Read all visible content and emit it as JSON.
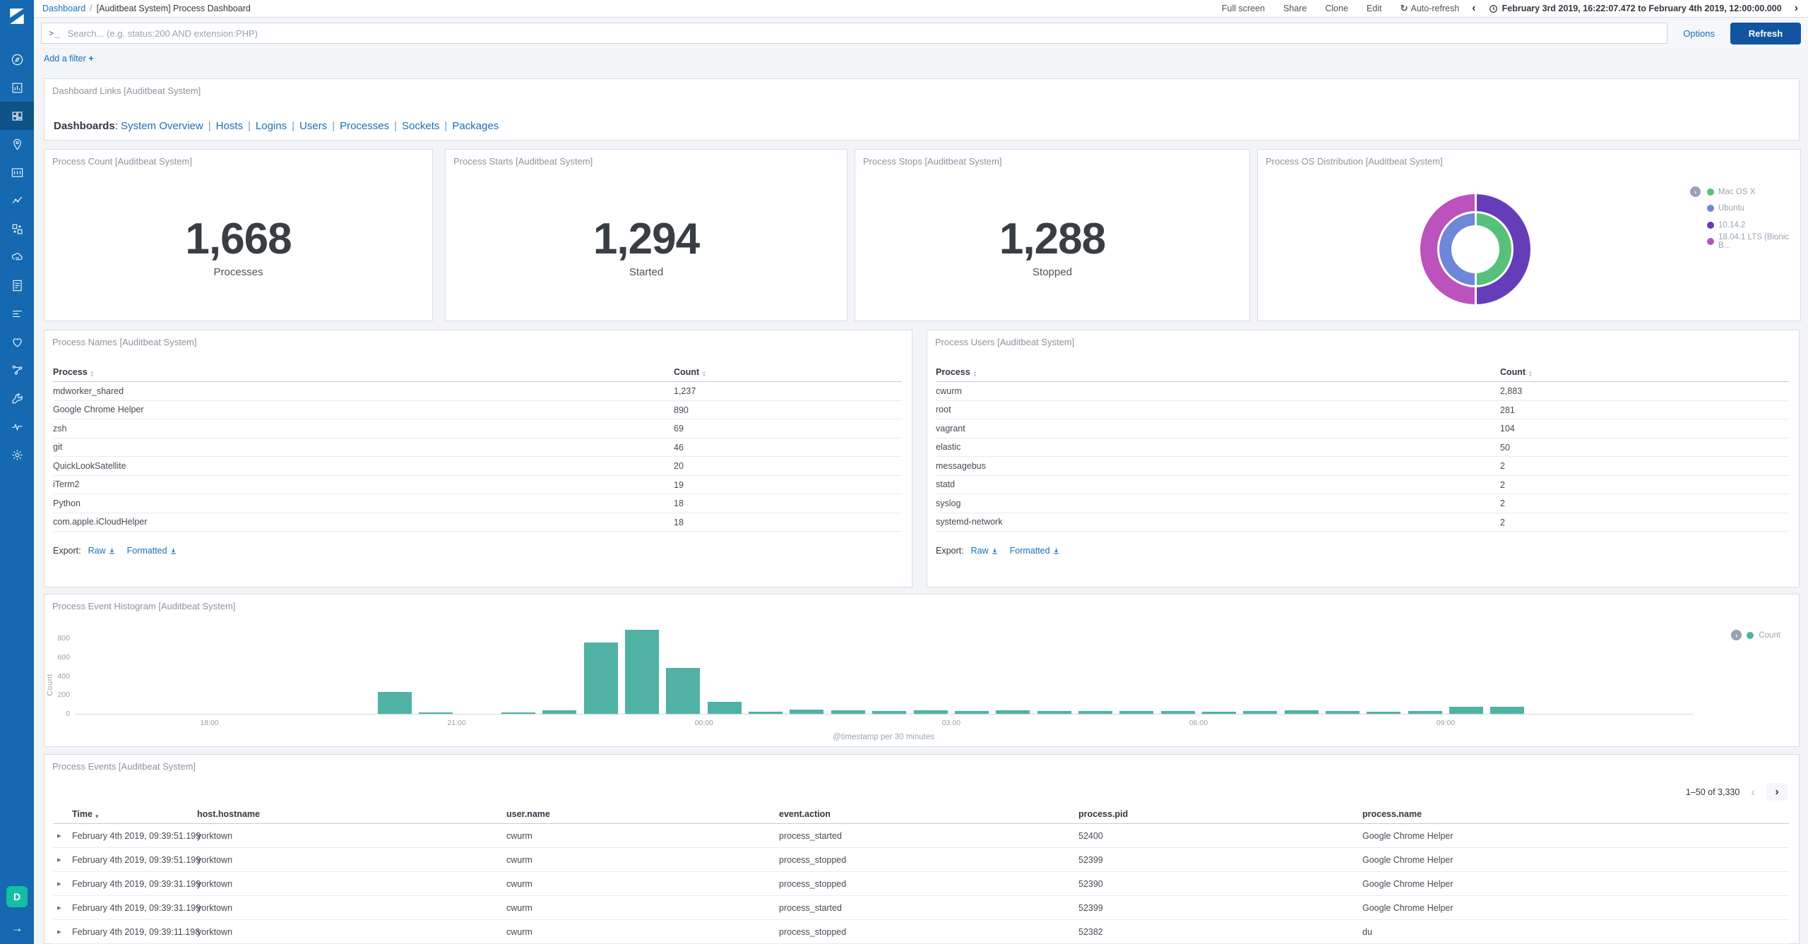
{
  "topnav": {
    "breadcrumb": {
      "root": "Dashboard",
      "separator": "/",
      "current": "[Auditbeat System] Process Dashboard"
    },
    "menu": [
      "Full screen",
      "Share",
      "Clone",
      "Edit"
    ],
    "auto_refresh": "Auto-refresh",
    "prev_icon": "‹",
    "next_icon": "›",
    "time_range": "February 3rd 2019, 16:22:07.472 to February 4th 2019, 12:00:00.000"
  },
  "querybar": {
    "prompt_icon": ">_",
    "placeholder": "Search... (e.g. status:200 AND extension:PHP)",
    "options_label": "Options",
    "refresh_label": "Refresh"
  },
  "filter_bar": {
    "add_filter": "Add a filter",
    "plus": "+"
  },
  "sidebar": {
    "space_badge": "D",
    "items": [
      {
        "icon": "discover"
      },
      {
        "icon": "visualize"
      },
      {
        "icon": "dashboard",
        "selected": true
      },
      {
        "icon": "maps"
      },
      {
        "icon": "canvas"
      },
      {
        "icon": "machine-learning"
      },
      {
        "icon": "infrastructure"
      },
      {
        "icon": "apm"
      },
      {
        "icon": "logs"
      },
      {
        "icon": "timelion"
      },
      {
        "icon": "uptime"
      },
      {
        "icon": "graph"
      },
      {
        "icon": "dev-tools"
      },
      {
        "icon": "monitoring"
      },
      {
        "icon": "management"
      }
    ]
  },
  "panels": {
    "links": {
      "title": "Dashboard Links [Auditbeat System]",
      "label": "Dashboards",
      "links": [
        "System Overview",
        "Hosts",
        "Logins",
        "Users",
        "Processes",
        "Sockets",
        "Packages"
      ]
    },
    "metrics": [
      {
        "title": "Process Count [Auditbeat System]",
        "value": "1,668",
        "label": "Processes"
      },
      {
        "title": "Process Starts [Auditbeat System]",
        "value": "1,294",
        "label": "Started"
      },
      {
        "title": "Process Stops [Auditbeat System]",
        "value": "1,288",
        "label": "Stopped"
      }
    ],
    "os_distribution": {
      "title": "Process OS Distribution [Auditbeat System]",
      "legend": [
        {
          "label": "Mac OS X",
          "color": "#57c17b"
        },
        {
          "label": "Ubuntu",
          "color": "#6f87d8"
        },
        {
          "label": "10.14.2",
          "color": "#663db8"
        },
        {
          "label": "18.04.1 LTS (Bionic B...",
          "color": "#bc52bc"
        }
      ]
    },
    "process_names": {
      "title": "Process Names [Auditbeat System]",
      "columns": [
        "Process",
        "Count"
      ],
      "rows": [
        [
          "mdworker_shared",
          "1,237"
        ],
        [
          "Google Chrome Helper",
          "890"
        ],
        [
          "zsh",
          "69"
        ],
        [
          "git",
          "46"
        ],
        [
          "QuickLookSatellite",
          "20"
        ],
        [
          "iTerm2",
          "19"
        ],
        [
          "Python",
          "18"
        ],
        [
          "com.apple.iCloudHelper",
          "18"
        ]
      ],
      "export_label": "Export:",
      "export_raw": "Raw",
      "export_formatted": "Formatted"
    },
    "process_users": {
      "title": "Process Users [Auditbeat System]",
      "columns": [
        "Process",
        "Count"
      ],
      "rows": [
        [
          "cwurm",
          "2,883"
        ],
        [
          "root",
          "281"
        ],
        [
          "vagrant",
          "104"
        ],
        [
          "elastic",
          "50"
        ],
        [
          "messagebus",
          "2"
        ],
        [
          "statd",
          "2"
        ],
        [
          "syslog",
          "2"
        ],
        [
          "systemd-network",
          "2"
        ]
      ],
      "export_label": "Export:",
      "export_raw": "Raw",
      "export_formatted": "Formatted"
    },
    "histogram": {
      "title": "Process Event Histogram [Auditbeat System]",
      "legend": "Count"
    },
    "events": {
      "title": "Process Events [Auditbeat System]",
      "pagination": "1–50 of 3,330",
      "columns": [
        "Time",
        "host.hostname",
        "user.name",
        "event.action",
        "process.pid",
        "process.name"
      ],
      "rows": [
        [
          "February 4th 2019, 09:39:51.199",
          "yorktown",
          "cwurm",
          "process_started",
          "52400",
          "Google Chrome Helper"
        ],
        [
          "February 4th 2019, 09:39:51.199",
          "yorktown",
          "cwurm",
          "process_stopped",
          "52399",
          "Google Chrome Helper"
        ],
        [
          "February 4th 2019, 09:39:31.199",
          "yorktown",
          "cwurm",
          "process_stopped",
          "52390",
          "Google Chrome Helper"
        ],
        [
          "February 4th 2019, 09:39:31.199",
          "yorktown",
          "cwurm",
          "process_started",
          "52399",
          "Google Chrome Helper"
        ],
        [
          "February 4th 2019, 09:39:11.198",
          "yorktown",
          "cwurm",
          "process_stopped",
          "52382",
          "du"
        ]
      ]
    }
  },
  "chart_data": [
    {
      "type": "pie",
      "title": "Process OS Distribution [Auditbeat System]",
      "legend_position": "right",
      "rings": [
        {
          "level": "inner",
          "slices": [
            {
              "label": "Mac OS X",
              "value": 50,
              "color": "#57c17b"
            },
            {
              "label": "Ubuntu",
              "value": 50,
              "color": "#6f87d8"
            }
          ]
        },
        {
          "level": "outer",
          "slices": [
            {
              "label": "10.14.2",
              "value": 50,
              "color": "#663db8"
            },
            {
              "label": "18.04.1 LTS (Bionic B...",
              "value": 50,
              "color": "#bc52bc"
            }
          ]
        }
      ]
    },
    {
      "type": "bar",
      "title": "Process Event Histogram [Auditbeat System]",
      "xlabel": "@timestamp per 30 minutes",
      "ylabel": "Count",
      "legend": [
        "Count"
      ],
      "color": "#4fb2a4",
      "ylim": [
        0,
        900
      ],
      "yticks": [
        0,
        200,
        400,
        600,
        800
      ],
      "xticks": [
        "18:00",
        "21:00",
        "00:00",
        "03:00",
        "06:00",
        "09:00"
      ],
      "x_range": [
        "16:22",
        "12:00"
      ],
      "buckets": [
        {
          "x": "20:00",
          "y": 230
        },
        {
          "x": "20:30",
          "y": 12
        },
        {
          "x": "21:30",
          "y": 8
        },
        {
          "x": "22:00",
          "y": 35
        },
        {
          "x": "22:30",
          "y": 755
        },
        {
          "x": "23:00",
          "y": 890
        },
        {
          "x": "23:30",
          "y": 485
        },
        {
          "x": "00:00",
          "y": 125
        },
        {
          "x": "00:30",
          "y": 25
        },
        {
          "x": "01:00",
          "y": 45
        },
        {
          "x": "01:30",
          "y": 40
        },
        {
          "x": "02:00",
          "y": 32
        },
        {
          "x": "02:30",
          "y": 35
        },
        {
          "x": "03:00",
          "y": 30
        },
        {
          "x": "03:30",
          "y": 38
        },
        {
          "x": "04:00",
          "y": 30
        },
        {
          "x": "04:30",
          "y": 32
        },
        {
          "x": "05:00",
          "y": 30
        },
        {
          "x": "05:30",
          "y": 32
        },
        {
          "x": "06:00",
          "y": 25
        },
        {
          "x": "06:30",
          "y": 30
        },
        {
          "x": "07:00",
          "y": 35
        },
        {
          "x": "07:30",
          "y": 32
        },
        {
          "x": "08:00",
          "y": 20
        },
        {
          "x": "08:30",
          "y": 30
        },
        {
          "x": "09:00",
          "y": 78
        },
        {
          "x": "09:30",
          "y": 75
        }
      ]
    }
  ],
  "colors": {
    "sidebar": "#1469b0",
    "sidebar_selected": "#0d5388",
    "link": "#1a6fba",
    "refresh_button": "#1155a0",
    "bar_teal": "#4fb2a4",
    "badge_green": "#16bda3"
  }
}
